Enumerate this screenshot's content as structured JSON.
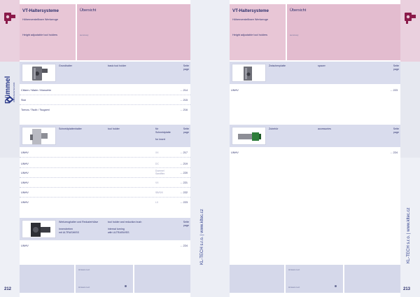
{
  "left": {
    "header": {
      "title": "VT-Haltersysteme",
      "sub_de": "Höhenverstellbare Werkzeuge",
      "sub_en": "Height adjustable tool holders",
      "overview_de": "Übersicht",
      "overview_en": "summary"
    },
    "section1": {
      "label_de": "Grundhalter",
      "label_en": "basic tool holder",
      "page_label": "Seite\npage",
      "rows": [
        {
          "name": "Citizen / Maier / Manurhin",
          "page": "... 214"
        },
        {
          "name": "Star",
          "page": "... 215"
        },
        {
          "name": "Tornos / Tsuib / Tsugami",
          "page": "... 216"
        }
      ]
    },
    "section2": {
      "label_de": "Schneidplattenhalter",
      "label_en": "tool holder",
      "insert_label": "für\nSchneidplatte\n\nfor insert",
      "page_label": "Seite\npage",
      "rows": [
        {
          "name": "UNHV",
          "insert": "XX",
          "page": "... 217"
        },
        {
          "name": "UNHV",
          "insert": "DC",
          "page": "... 219"
        },
        {
          "name": "UNHV",
          "insert": "Dummel\nSandflex",
          "page": "... 220"
        },
        {
          "name": "UNHV",
          "insert": "VX",
          "page": "... 221"
        },
        {
          "name": "UNHV",
          "insert": "SB/S/X",
          "page": "... 222"
        },
        {
          "name": "UNHV",
          "insert": "LX",
          "page": "... 223"
        }
      ]
    },
    "section3": {
      "label_de": "Werkzeughalter und Reduzierhülse\n\nInnendrehen\nmit ULTRASWISS",
      "label_en": "tool holder and reduction bush\n\ninternal turning\nwith ULTRASWISS",
      "page_label": "Seite\npage",
      "rows": [
        {
          "name": "UNHV",
          "page": "... 224"
        }
      ]
    },
    "footer": {
      "page_number": "212",
      "small1": "Hinweis text",
      "small2": "Hinweis text"
    },
    "brand": "Dümmel",
    "brand_sub": "WERKZEUGTECHNIK"
  },
  "right": {
    "header": {
      "title": "VT-Haltersysteme",
      "sub_de": "Höhenverstellbare Werkzeuge",
      "sub_en": "Height adjustable tool holders",
      "overview_de": "Übersicht",
      "overview_en": "summary"
    },
    "section1": {
      "label_de": "Zwischenplatte",
      "label_en": "spacer",
      "page_label": "Seite\npage",
      "rows": [
        {
          "name": "UNHV",
          "page": "... 223"
        }
      ]
    },
    "section2": {
      "label_de": "Zubehör",
      "label_en": "accessories",
      "page_label": "Seite\npage",
      "rows": [
        {
          "name": "UNHV",
          "page": "... 224"
        }
      ]
    },
    "footer": {
      "page_number": "213",
      "small1": "Hinweis text",
      "small2": "Hinweis text"
    }
  },
  "spine_text": "KL-TECH s.r.o. | www.kltec.cz"
}
